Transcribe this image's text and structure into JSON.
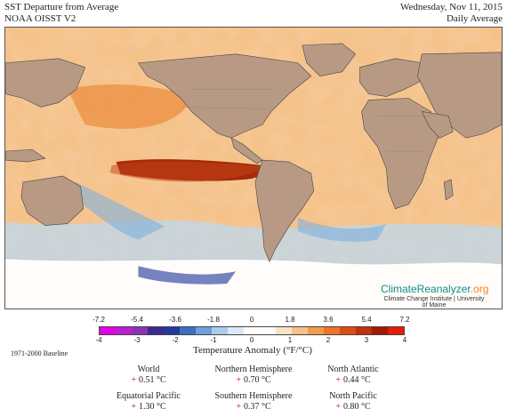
{
  "header": {
    "title": "SST Departure from Average",
    "dataset": "NOAA OISST V2",
    "date": "Wednesday, Nov 11, 2015",
    "averaging": "Daily Average"
  },
  "branding": {
    "name_main": "ClimateReanalyzer",
    "name_suffix": ".org",
    "subtitle": "Climate Change Institute | University of Maine"
  },
  "legend": {
    "label": "Temperature Anomaly (°F/°C)",
    "fahrenheit_ticks": [
      "-7.2",
      "-5.4",
      "-3.6",
      "-1.8",
      "0",
      "1.8",
      "3.6",
      "5.4",
      "7.2"
    ],
    "celsius_ticks": [
      "-4",
      "-3",
      "-2",
      "-1",
      "0",
      "1",
      "2",
      "3",
      "4"
    ],
    "colors": [
      "#e600e6",
      "#bb1fd0",
      "#8a32b8",
      "#3d2a8c",
      "#23399e",
      "#3b6fc4",
      "#6ba0d8",
      "#a9cdeb",
      "#dbeaf6",
      "#ffffff",
      "#ffffff",
      "#fbe2c2",
      "#f8c088",
      "#f49a4f",
      "#ee7428",
      "#de4c12",
      "#c22f0c",
      "#a01a06",
      "#e81a0a"
    ]
  },
  "baseline": "1971-2000 Baseline",
  "stats": [
    {
      "region": "World",
      "sign": "+",
      "value": "0.51 °C"
    },
    {
      "region": "Northern Hemisphere",
      "sign": "+",
      "value": "0.70 °C"
    },
    {
      "region": "North Atlantic",
      "sign": "+",
      "value": "0.44 °C"
    },
    {
      "region": "Equatorial Pacific",
      "sign": "+",
      "value": "1.30 °C"
    },
    {
      "region": "Southern Hemisphere",
      "sign": "+",
      "value": "0.37 °C"
    },
    {
      "region": "North Pacific",
      "sign": "+",
      "value": "0.80 °C"
    }
  ]
}
